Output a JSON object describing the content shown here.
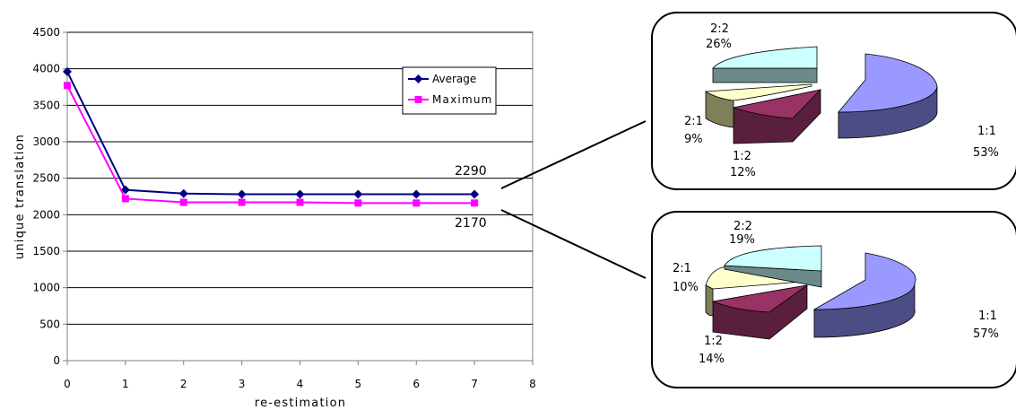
{
  "chart_data": [
    {
      "type": "line",
      "xlabel": "re-estimation",
      "ylabel": "unique translation",
      "xlim": [
        0,
        8
      ],
      "ylim": [
        0,
        4500
      ],
      "x_ticks": [
        "0",
        "1",
        "2",
        "3",
        "4",
        "5",
        "6",
        "7",
        "8"
      ],
      "y_ticks": [
        "0",
        "500",
        "1000",
        "1500",
        "2000",
        "2500",
        "3000",
        "3500",
        "4000",
        "4500"
      ],
      "grid": "horizontal",
      "legend_position": "top-right",
      "x": [
        0,
        1,
        2,
        3,
        4,
        5,
        6,
        7
      ],
      "series": [
        {
          "name": "Average",
          "color": "#000080",
          "marker": "diamond",
          "values": [
            3960,
            2340,
            2290,
            2280,
            2280,
            2280,
            2280,
            2280
          ]
        },
        {
          "name": "Maximum",
          "color": "#ff00ff",
          "marker": "square",
          "values": [
            3770,
            2220,
            2170,
            2170,
            2170,
            2160,
            2160,
            2160
          ]
        }
      ],
      "annotations": [
        "2290",
        "2170"
      ]
    },
    {
      "type": "pie",
      "categories": [
        "1:1",
        "1:2",
        "2:1",
        "2:2"
      ],
      "labels": [
        "53%",
        "12%",
        "9%",
        "26%"
      ],
      "values": [
        53,
        12,
        9,
        26
      ],
      "colors": [
        "#9999ff",
        "#993366",
        "#ffffcc",
        "#ccffff"
      ]
    },
    {
      "type": "pie",
      "categories": [
        "1:1",
        "1:2",
        "2:1",
        "2:2"
      ],
      "labels": [
        "57%",
        "14%",
        "10%",
        "19%"
      ],
      "values": [
        57,
        14,
        10,
        19
      ],
      "colors": [
        "#9999ff",
        "#993366",
        "#ffffcc",
        "#ccffff"
      ]
    }
  ]
}
